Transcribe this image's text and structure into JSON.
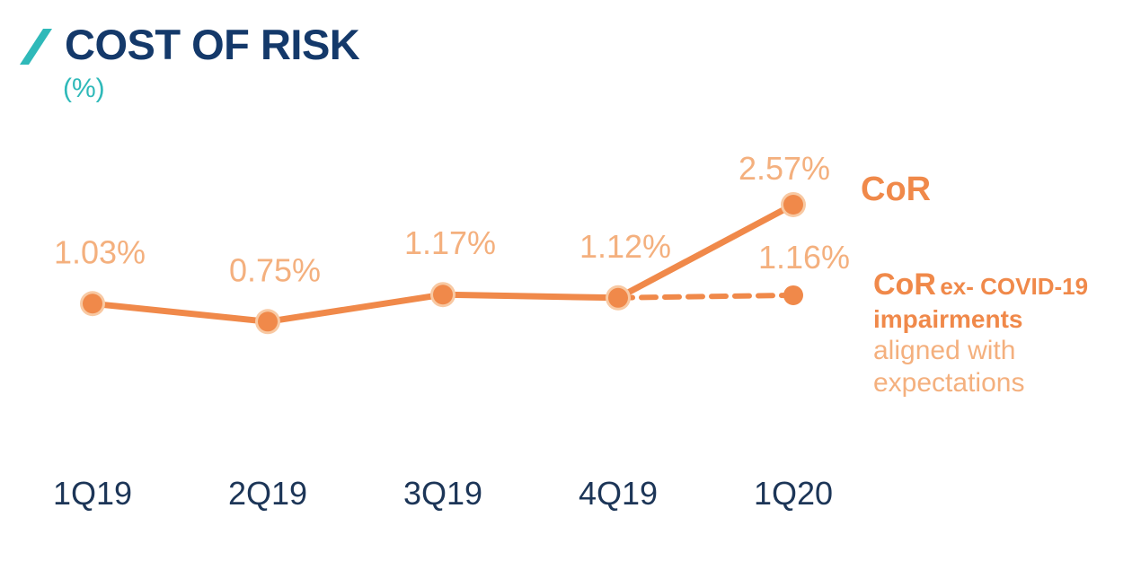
{
  "header": {
    "title": "COST OF RISK",
    "unit": "(%)"
  },
  "colors": {
    "accent_slash": "#2fb9b9",
    "title": "#14396a",
    "series": "#f0894a",
    "series_light": "#f4b07e",
    "point_halo": "#f8c9a3",
    "tick_label": "#1c3557"
  },
  "legend": {
    "cor": "CoR",
    "ex_covid_prefix": "CoR",
    "ex_covid_suffix": "ex- COVID-19",
    "ex_covid_line2": "impairments",
    "note_line1": "aligned with",
    "note_line2": "expectations"
  },
  "chart_data": {
    "type": "line",
    "categories": [
      "1Q19",
      "2Q19",
      "3Q19",
      "4Q19",
      "1Q20"
    ],
    "series": [
      {
        "name": "CoR",
        "values": [
          1.03,
          0.75,
          1.17,
          1.12,
          2.57
        ],
        "labels": [
          "1.03%",
          "0.75%",
          "1.17%",
          "1.12%",
          "2.57%"
        ],
        "style": "solid"
      },
      {
        "name": "CoR ex- COVID-19 impairments",
        "values": [
          null,
          null,
          null,
          1.12,
          1.16
        ],
        "labels": [
          null,
          null,
          null,
          null,
          "1.16%"
        ],
        "style": "dashed"
      }
    ],
    "grid": false,
    "legend_position": "right"
  }
}
